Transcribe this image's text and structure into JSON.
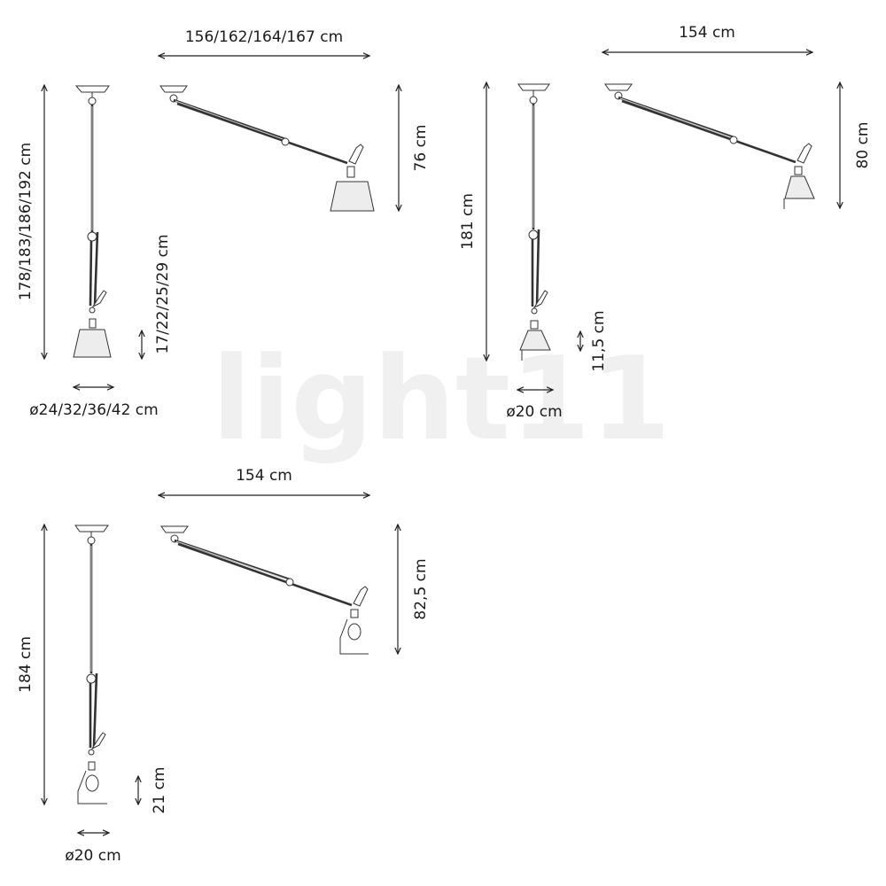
{
  "watermark": "light11",
  "variants": [
    {
      "name": "fabric-shade",
      "width_label": "156/162/164/167 cm",
      "height_label": "178/183/186/192 cm",
      "drop_label": "76 cm",
      "shade_height_label": "17/22/25/29 cm",
      "diameter_label": "ø24/32/36/42 cm"
    },
    {
      "name": "small-shade",
      "width_label": "154 cm",
      "height_label": "181 cm",
      "drop_label": "80 cm",
      "shade_height_label": "11,5 cm",
      "diameter_label": "ø20 cm"
    },
    {
      "name": "spot-reflector",
      "width_label": "154 cm",
      "height_label": "184 cm",
      "drop_label": "82,5 cm",
      "shade_height_label": "21 cm",
      "diameter_label": "ø20 cm"
    }
  ]
}
